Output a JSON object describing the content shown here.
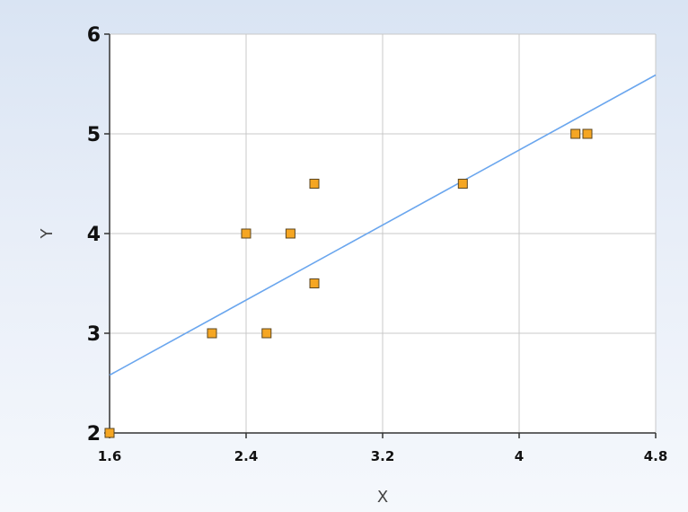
{
  "chart_data": {
    "type": "scatter",
    "title": "",
    "xlabel": "X",
    "ylabel": "Y",
    "xlim": [
      1.6,
      4.8
    ],
    "ylim": [
      2,
      6
    ],
    "x_ticks": [
      "1.6",
      "2.4",
      "3.2",
      "4",
      "4.8"
    ],
    "y_ticks": [
      "2",
      "3",
      "4",
      "5",
      "6"
    ],
    "grid": true,
    "series": [
      {
        "type": "scatter",
        "color": "#f5a623",
        "x": [
          1.6,
          2.2,
          2.4,
          2.52,
          2.66,
          2.8,
          2.8,
          3.67,
          4.33,
          4.4
        ],
        "y": [
          2.0,
          3.0,
          4.0,
          3.0,
          4.0,
          4.5,
          3.5,
          4.5,
          5.0,
          5.0
        ]
      },
      {
        "type": "line",
        "color": "#6aa6ee",
        "x": [
          1.6,
          4.8
        ],
        "y": [
          2.58,
          5.59
        ]
      }
    ]
  }
}
